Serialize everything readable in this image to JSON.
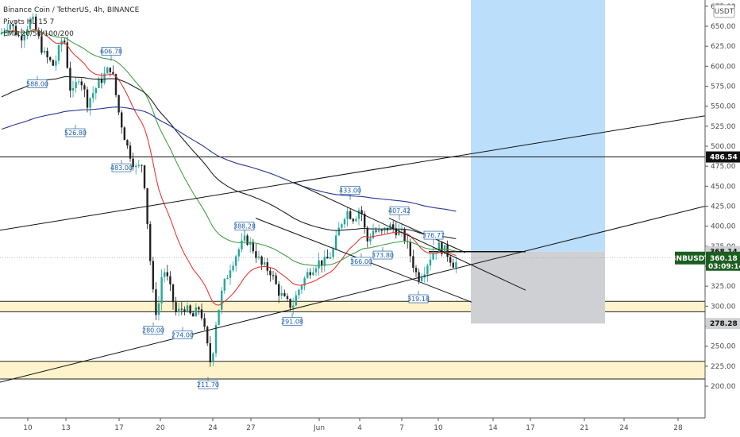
{
  "legend": {
    "line1": "Binance Coin / TetherUS, 4h, BINANCE",
    "line2": "Pivots HL 15 7",
    "line3": "EMA 20/50/100/200"
  },
  "currency_button": "USDT",
  "colors": {
    "bull": "#26a69a",
    "bear": "#222222",
    "ema20": "#e53935",
    "ema50": "#43a047",
    "ema100": "#212121",
    "ema200": "#283593",
    "target_zone": "#bbdefb",
    "stop_zone": "#cfd0d4",
    "support_zone": "#fff3cc",
    "last_price": "#1b5e20",
    "pivot": "#1f5fa8"
  },
  "chart_data": {
    "type": "candlestick",
    "symbol": "BNBUSDT",
    "timeframe": "4h",
    "exchange": "BINANCE",
    "y_axis": {
      "range": [
        195,
        680
      ],
      "ticks": [
        200,
        225,
        250,
        275,
        300,
        325,
        350,
        375,
        400,
        425,
        450,
        475,
        500,
        525,
        550,
        575,
        600,
        625,
        650,
        675
      ]
    },
    "x_axis": {
      "ticks": [
        "10",
        "13",
        "17",
        "20",
        "24",
        "27",
        "Jun",
        "4",
        "7",
        "10",
        "14",
        "17",
        "21",
        "24",
        "28"
      ]
    },
    "price_tags": [
      {
        "label": "486.54",
        "value": 486.54,
        "style": "black"
      },
      {
        "label": "368.14",
        "value": 368.14,
        "style": "gray"
      },
      {
        "label": "360.18",
        "value": 360.18,
        "style": "green",
        "symbol": "BNBUSDT",
        "countdown": "03:09:14"
      },
      {
        "label": "278.28",
        "value": 278.28,
        "style": "gray"
      }
    ],
    "pivots": [
      {
        "label": "588.00",
        "value": 588.0,
        "kind": "low"
      },
      {
        "label": "606.78",
        "value": 606.78,
        "kind": "high"
      },
      {
        "label": "526.80",
        "value": 526.8,
        "kind": "low"
      },
      {
        "label": "483.00",
        "value": 483.0,
        "kind": "low"
      },
      {
        "label": "280.00",
        "value": 280.0,
        "kind": "low"
      },
      {
        "label": "274.00",
        "value": 274.0,
        "kind": "low"
      },
      {
        "label": "211.70",
        "value": 211.7,
        "kind": "low"
      },
      {
        "label": "388.28",
        "value": 388.28,
        "kind": "high"
      },
      {
        "label": "291.08",
        "value": 291.08,
        "kind": "low"
      },
      {
        "label": "433.00",
        "value": 433.0,
        "kind": "high"
      },
      {
        "label": "366.00",
        "value": 366.0,
        "kind": "low"
      },
      {
        "label": "373.80",
        "value": 373.8,
        "kind": "low"
      },
      {
        "label": "407.42",
        "value": 407.42,
        "kind": "high"
      },
      {
        "label": "376.77",
        "value": 376.77,
        "kind": "high"
      },
      {
        "label": "319.18",
        "value": 319.18,
        "kind": "low"
      }
    ],
    "horizontal_lines": [
      486.54
    ],
    "zones": [
      {
        "name": "support-zone-upper",
        "from": 293,
        "to": 306
      },
      {
        "name": "support-zone-lower",
        "from": 209,
        "to": 231
      }
    ],
    "position": {
      "entry": 368.14,
      "stop": 278.28,
      "target": 680
    },
    "series_close_sample": [
      640,
      650,
      610,
      588,
      600,
      606,
      560,
      527,
      540,
      490,
      483,
      450,
      400,
      320,
      290,
      280,
      300,
      274,
      260,
      212,
      250,
      300,
      340,
      388,
      360,
      330,
      300,
      291,
      330,
      360,
      380,
      400,
      433,
      410,
      366,
      400,
      407,
      380,
      340,
      319,
      350,
      377,
      360
    ]
  }
}
